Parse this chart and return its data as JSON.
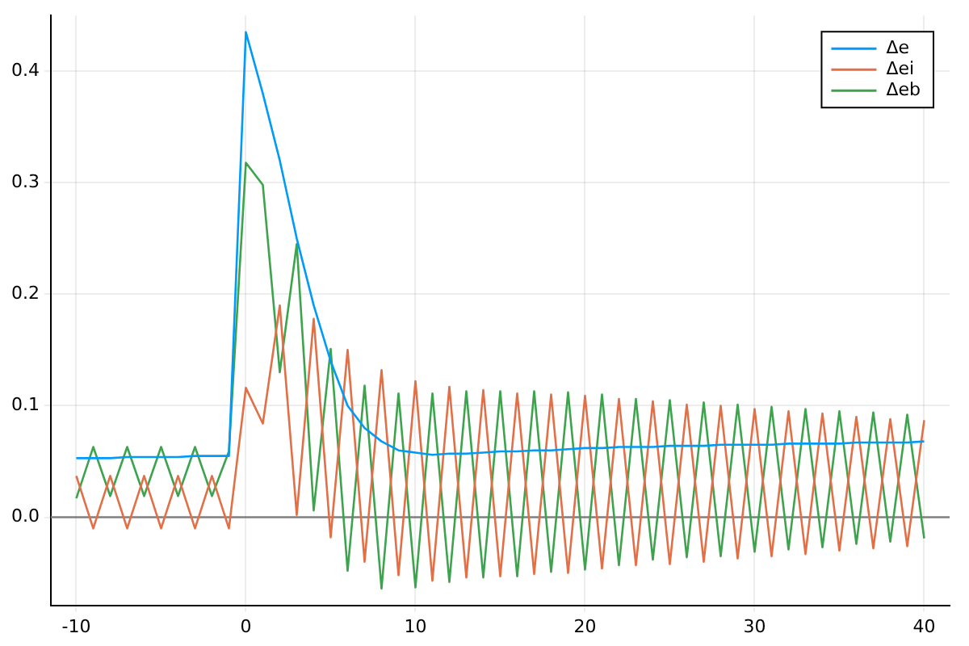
{
  "chart_data": {
    "type": "line",
    "x": [
      -10,
      -9,
      -8,
      -7,
      -6,
      -5,
      -4,
      -3,
      -2,
      -1,
      0,
      1,
      2,
      3,
      4,
      5,
      6,
      7,
      8,
      9,
      10,
      11,
      12,
      13,
      14,
      15,
      16,
      17,
      18,
      19,
      20,
      21,
      22,
      23,
      24,
      25,
      26,
      27,
      28,
      29,
      30,
      31,
      32,
      33,
      34,
      35,
      36,
      37,
      38,
      39,
      40
    ],
    "series": [
      {
        "name": "Δe",
        "color": "#009af9",
        "values": [
          0.053,
          0.053,
          0.053,
          0.054,
          0.054,
          0.054,
          0.054,
          0.055,
          0.055,
          0.055,
          0.435,
          0.38,
          0.32,
          0.25,
          0.19,
          0.14,
          0.1,
          0.08,
          0.068,
          0.06,
          0.058,
          0.056,
          0.057,
          0.057,
          0.058,
          0.059,
          0.059,
          0.06,
          0.06,
          0.061,
          0.062,
          0.062,
          0.063,
          0.063,
          0.063,
          0.064,
          0.064,
          0.064,
          0.065,
          0.065,
          0.065,
          0.065,
          0.066,
          0.066,
          0.066,
          0.066,
          0.067,
          0.067,
          0.067,
          0.067,
          0.068
        ]
      },
      {
        "name": "Δei",
        "color": "#e26f46",
        "values": [
          0.037,
          -0.01,
          0.037,
          -0.01,
          0.037,
          -0.01,
          0.037,
          -0.01,
          0.037,
          -0.01,
          0.116,
          0.084,
          0.19,
          0.002,
          0.178,
          -0.018,
          0.15,
          -0.04,
          0.132,
          -0.052,
          0.122,
          -0.057,
          0.117,
          -0.054,
          0.114,
          -0.053,
          0.111,
          -0.051,
          0.11,
          -0.05,
          0.109,
          -0.046,
          0.106,
          -0.043,
          0.104,
          -0.042,
          0.101,
          -0.04,
          0.1,
          -0.037,
          0.097,
          -0.035,
          0.095,
          -0.033,
          0.093,
          -0.03,
          0.09,
          -0.028,
          0.088,
          -0.026,
          0.087
        ]
      },
      {
        "name": "Δeb",
        "color": "#3da44d",
        "values": [
          0.017,
          0.063,
          0.019,
          0.063,
          0.019,
          0.063,
          0.019,
          0.063,
          0.019,
          0.059,
          0.318,
          0.298,
          0.13,
          0.245,
          0.006,
          0.151,
          -0.048,
          0.118,
          -0.064,
          0.111,
          -0.063,
          0.111,
          -0.058,
          0.113,
          -0.054,
          0.113,
          -0.053,
          0.113,
          -0.049,
          0.112,
          -0.047,
          0.11,
          -0.043,
          0.106,
          -0.038,
          0.105,
          -0.036,
          0.103,
          -0.035,
          0.101,
          -0.031,
          0.099,
          -0.029,
          0.097,
          -0.027,
          0.095,
          -0.024,
          0.094,
          -0.022,
          0.092,
          -0.019
        ]
      }
    ],
    "xlim": [
      -11.5,
      41.5
    ],
    "xticks": [
      -10,
      0,
      10,
      20,
      30,
      40
    ],
    "ylim": [
      -0.079,
      0.45
    ],
    "yticks": [
      {
        "value": 0,
        "label": "0.0"
      },
      {
        "value": 0.1,
        "label": "0.1"
      },
      {
        "value": 0.2,
        "label": "0.2"
      },
      {
        "value": 0.3,
        "label": "0.3"
      },
      {
        "value": 0.4,
        "label": "0.4"
      }
    ],
    "ref_lines": [
      {
        "axis": "y",
        "value": 0,
        "color": "#808080"
      }
    ],
    "grid": true,
    "legend": "top right",
    "marker": "none",
    "line_style": "solid"
  }
}
